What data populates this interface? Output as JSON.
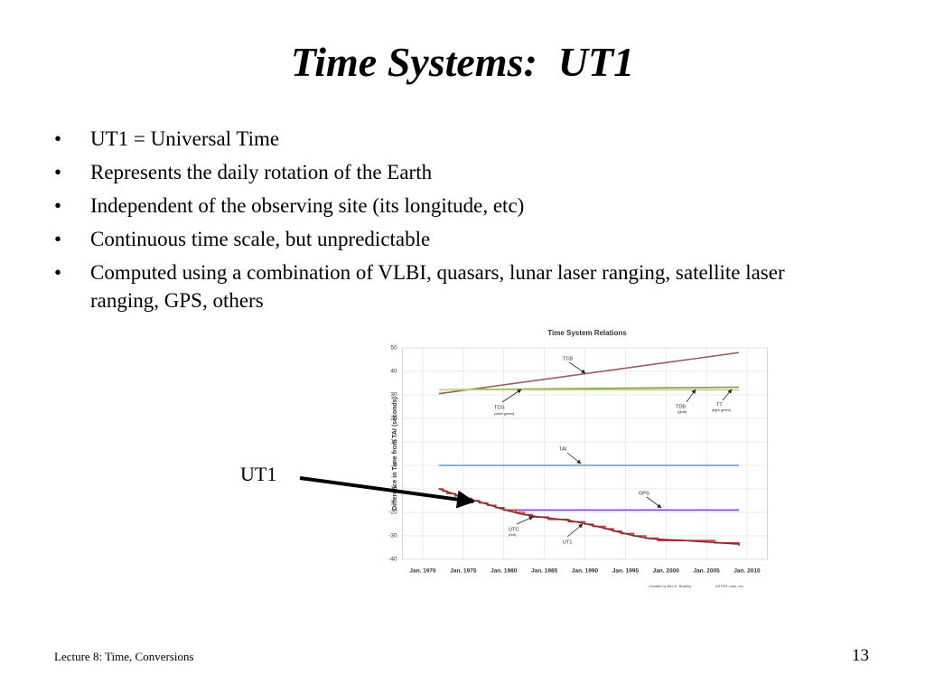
{
  "title": "Time Systems:  UT1",
  "bullets": [
    "UT1 = Universal Time",
    "Represents the daily rotation of the Earth",
    "Independent of the observing site (its longitude, etc)",
    "Continuous time scale, but unpredictable",
    "Computed using a combination of VLBI, quasars, lunar laser ranging, satellite laser ranging, GPS, others"
  ],
  "callout": "UT1",
  "footer": "Lecture 8: Time, Conversions",
  "page_number": "13",
  "chart_data": {
    "type": "line",
    "title": "Time System Relations",
    "y_label": "Difference in Time from TAI (seconds)",
    "xlim": [
      1967.5,
      2012.5
    ],
    "xticks": [
      {
        "value": 1970,
        "label": "Jan. 1970"
      },
      {
        "value": 1975,
        "label": "Jan. 1975"
      },
      {
        "value": 1980,
        "label": "Jan. 1980"
      },
      {
        "value": 1985,
        "label": "Jan. 1985"
      },
      {
        "value": 1990,
        "label": "Jan. 1990"
      },
      {
        "value": 1995,
        "label": "Jan. 1995"
      },
      {
        "value": 2000,
        "label": "Jan. 2000"
      },
      {
        "value": 2005,
        "label": "Jan. 2005"
      },
      {
        "value": 2010,
        "label": "Jan. 2010"
      }
    ],
    "ylim": [
      -40,
      50
    ],
    "yticks": [
      -40,
      -30,
      -20,
      -10,
      0,
      10,
      20,
      30,
      40,
      50
    ],
    "grid": true,
    "series": [
      {
        "name": "TCB",
        "color": "#9a5f5c",
        "x": [
          1972,
          2009
        ],
        "values": [
          30.5,
          48
        ]
      },
      {
        "name": "TCG",
        "color": "#8f9c3e",
        "x": [
          1972,
          2009
        ],
        "values": [
          32.2,
          33.3
        ]
      },
      {
        "name": "TDB",
        "color": "#d8b64a",
        "x": [
          1972,
          2009
        ],
        "values": [
          32.2,
          32.2
        ]
      },
      {
        "name": "TT",
        "color": "#b4d98c",
        "x": [
          1972,
          2009
        ],
        "values": [
          32.2,
          32.2
        ]
      },
      {
        "name": "TAI",
        "color": "#5b9be3",
        "x": [
          1972,
          2009
        ],
        "values": [
          0,
          0
        ]
      },
      {
        "name": "GPS",
        "color": "#7b3fd2",
        "x": [
          1980,
          2009
        ],
        "values": [
          -19,
          -19
        ]
      },
      {
        "name": "UTC",
        "color": "#d33a3a",
        "step": true,
        "x": [
          1972,
          1972.5,
          1973,
          1974,
          1975,
          1976,
          1977,
          1978,
          1979,
          1980,
          1981.5,
          1982.5,
          1983.5,
          1985.5,
          1988,
          1990,
          1991,
          1992.5,
          1993.5,
          1994.5,
          1996,
          1997.5,
          1999,
          2006,
          2009
        ],
        "values": [
          -10,
          -11,
          -12,
          -13,
          -14,
          -15,
          -16,
          -17,
          -18,
          -19,
          -20,
          -21,
          -22,
          -23,
          -24,
          -25,
          -26,
          -27,
          -28,
          -29,
          -30,
          -31,
          -32,
          -33,
          -34
        ]
      },
      {
        "name": "UT1",
        "color": "#7d2f2f",
        "x": [
          1972,
          1974,
          1976,
          1978,
          1980,
          1982,
          1984,
          1986,
          1988,
          1990,
          1992,
          1994,
          1996,
          1998,
          2000,
          2002,
          2004,
          2006,
          2008,
          2009
        ],
        "values": [
          -9.9,
          -12.4,
          -14.5,
          -16.6,
          -18.8,
          -20.6,
          -21.8,
          -22.6,
          -23.4,
          -24.8,
          -26.4,
          -28.2,
          -29.9,
          -31.2,
          -31.6,
          -31.9,
          -32.4,
          -32.8,
          -33.3,
          -33.5
        ]
      }
    ],
    "annotations": [
      "TCB",
      "TCG",
      "(olive green)",
      "TDB",
      "(gold)",
      "TT",
      "(light green)",
      "TAI",
      "GPS",
      "UTC",
      "(red)",
      "UT1"
    ],
    "credits": [
      "Created by Ben K. Bradley",
      "ASTER Labs, Inc."
    ]
  }
}
